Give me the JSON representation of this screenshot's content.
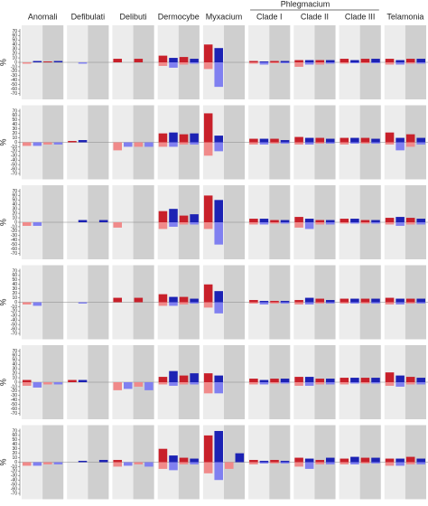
{
  "chart_data": {
    "type": "bar",
    "spanning_label": "Phlegmacium",
    "groups": [
      "Anomali",
      "Defibulati",
      "Delibuti",
      "Dermocybe",
      "Myxacium",
      "Clade I",
      "Clade II",
      "Clade III",
      "Telamonia"
    ],
    "ylabel": "%",
    "ylim": [
      -75,
      75
    ],
    "yticks": [
      70,
      60,
      50,
      40,
      30,
      20,
      10,
      0,
      -10,
      -20,
      -30,
      -40,
      -50,
      -60,
      -70
    ],
    "gain_colors": [
      "#c8202a",
      "#1c22b4"
    ],
    "loss_colors": [
      "#f08a8a",
      "#8080f0"
    ],
    "background": [
      "#ececec",
      "#cfcfcf"
    ],
    "panels": [
      [
        {
          "gain": [
            0,
            3,
            2,
            3
          ],
          "loss": [
            -3,
            0,
            0,
            0
          ]
        },
        {
          "gain": [
            0,
            0,
            0,
            0
          ],
          "loss": [
            0,
            -3,
            0,
            0
          ]
        },
        {
          "gain": [
            8,
            0,
            8,
            0
          ],
          "loss": [
            0,
            0,
            0,
            0
          ]
        },
        {
          "gain": [
            15,
            10,
            12,
            8
          ],
          "loss": [
            -8,
            -12,
            -5,
            -3
          ]
        },
        {
          "gain": [
            40,
            32,
            0,
            0
          ],
          "loss": [
            -15,
            -55,
            0,
            0
          ]
        },
        {
          "gain": [
            3,
            2,
            3,
            3
          ],
          "loss": [
            -3,
            -5,
            -2,
            -2
          ]
        },
        {
          "gain": [
            5,
            5,
            5,
            5
          ],
          "loss": [
            -10,
            -5,
            -5,
            -3
          ]
        },
        {
          "gain": [
            8,
            5,
            8,
            8
          ],
          "loss": [
            -3,
            -2,
            -2,
            -2
          ]
        },
        {
          "gain": [
            8,
            5,
            8,
            8
          ],
          "loss": [
            -5,
            -5,
            -3,
            -3
          ]
        }
      ],
      [
        {
          "gain": [
            0,
            0,
            0,
            0
          ],
          "loss": [
            -8,
            -8,
            -5,
            -5
          ]
        },
        {
          "gain": [
            3,
            5,
            0,
            0
          ],
          "loss": [
            0,
            0,
            0,
            0
          ]
        },
        {
          "gain": [
            0,
            0,
            0,
            0
          ],
          "loss": [
            -18,
            -10,
            -10,
            -10
          ]
        },
        {
          "gain": [
            20,
            22,
            18,
            20
          ],
          "loss": [
            -10,
            -10,
            -5,
            -5
          ]
        },
        {
          "gain": [
            65,
            15,
            0,
            0
          ],
          "loss": [
            -30,
            -20,
            0,
            0
          ]
        },
        {
          "gain": [
            8,
            8,
            8,
            5
          ],
          "loss": [
            -5,
            -5,
            -3,
            -3
          ]
        },
        {
          "gain": [
            12,
            10,
            10,
            8
          ],
          "loss": [
            -5,
            -5,
            -3,
            -3
          ]
        },
        {
          "gain": [
            10,
            10,
            10,
            8
          ],
          "loss": [
            -5,
            -3,
            -3,
            -3
          ]
        },
        {
          "gain": [
            22,
            10,
            18,
            10
          ],
          "loss": [
            -5,
            -18,
            -10,
            -5
          ]
        }
      ],
      [
        {
          "gain": [
            0,
            0,
            0,
            0
          ],
          "loss": [
            -8,
            -8,
            0,
            0
          ]
        },
        {
          "gain": [
            0,
            5,
            0,
            5
          ],
          "loss": [
            0,
            0,
            0,
            0
          ]
        },
        {
          "gain": [
            0,
            0,
            0,
            0
          ],
          "loss": [
            -12,
            0,
            0,
            0
          ]
        },
        {
          "gain": [
            25,
            30,
            15,
            18
          ],
          "loss": [
            -15,
            -10,
            -5,
            -5
          ]
        },
        {
          "gain": [
            60,
            50,
            0,
            0
          ],
          "loss": [
            -15,
            -50,
            0,
            0
          ]
        },
        {
          "gain": [
            8,
            8,
            5,
            5
          ],
          "loss": [
            -5,
            -5,
            -3,
            -3
          ]
        },
        {
          "gain": [
            12,
            8,
            5,
            5
          ],
          "loss": [
            -12,
            -15,
            -5,
            -5
          ]
        },
        {
          "gain": [
            8,
            8,
            5,
            5
          ],
          "loss": [
            -3,
            -3,
            -3,
            -3
          ]
        },
        {
          "gain": [
            10,
            12,
            10,
            8
          ],
          "loss": [
            -5,
            -8,
            -5,
            -5
          ]
        }
      ],
      [
        {
          "gain": [
            0,
            0,
            0,
            0
          ],
          "loss": [
            -5,
            -8,
            0,
            0
          ]
        },
        {
          "gain": [
            0,
            0,
            0,
            0
          ],
          "loss": [
            0,
            -3,
            0,
            0
          ]
        },
        {
          "gain": [
            10,
            0,
            10,
            0
          ],
          "loss": [
            0,
            0,
            0,
            0
          ]
        },
        {
          "gain": [
            18,
            12,
            12,
            8
          ],
          "loss": [
            -8,
            -8,
            -5,
            -3
          ]
        },
        {
          "gain": [
            40,
            25,
            0,
            0
          ],
          "loss": [
            -12,
            -25,
            0,
            0
          ]
        },
        {
          "gain": [
            5,
            3,
            3,
            3
          ],
          "loss": [
            -3,
            -5,
            -3,
            -3
          ]
        },
        {
          "gain": [
            5,
            10,
            8,
            5
          ],
          "loss": [
            -5,
            -5,
            -3,
            -3
          ]
        },
        {
          "gain": [
            8,
            8,
            8,
            8
          ],
          "loss": [
            -3,
            -3,
            -3,
            -3
          ]
        },
        {
          "gain": [
            10,
            8,
            8,
            8
          ],
          "loss": [
            -5,
            -5,
            -3,
            -3
          ]
        }
      ],
      [
        {
          "gain": [
            5,
            0,
            0,
            0
          ],
          "loss": [
            -8,
            -12,
            -5,
            -5
          ]
        },
        {
          "gain": [
            5,
            5,
            0,
            0
          ],
          "loss": [
            0,
            0,
            0,
            0
          ]
        },
        {
          "gain": [
            0,
            0,
            0,
            0
          ],
          "loss": [
            -18,
            -15,
            -10,
            -18
          ]
        },
        {
          "gain": [
            12,
            25,
            15,
            20
          ],
          "loss": [
            -5,
            -8,
            -5,
            -5
          ]
        },
        {
          "gain": [
            20,
            15,
            0,
            0
          ],
          "loss": [
            -25,
            -25,
            0,
            0
          ]
        },
        {
          "gain": [
            8,
            5,
            8,
            8
          ],
          "loss": [
            -5,
            -5,
            -3,
            -3
          ]
        },
        {
          "gain": [
            12,
            12,
            8,
            8
          ],
          "loss": [
            -8,
            -8,
            -5,
            -5
          ]
        },
        {
          "gain": [
            10,
            10,
            10,
            10
          ],
          "loss": [
            -5,
            -3,
            -3,
            -3
          ]
        },
        {
          "gain": [
            22,
            15,
            12,
            10
          ],
          "loss": [
            -8,
            -10,
            -5,
            -5
          ]
        }
      ],
      [
        {
          "gain": [
            0,
            0,
            0,
            0
          ],
          "loss": [
            -8,
            -8,
            -5,
            -5
          ]
        },
        {
          "gain": [
            0,
            3,
            0,
            5
          ],
          "loss": [
            0,
            0,
            0,
            0
          ]
        },
        {
          "gain": [
            5,
            0,
            0,
            0
          ],
          "loss": [
            -10,
            -8,
            -5,
            -10
          ]
        },
        {
          "gain": [
            30,
            15,
            10,
            8
          ],
          "loss": [
            -15,
            -18,
            -5,
            -5
          ]
        },
        {
          "gain": [
            60,
            70,
            0,
            20
          ],
          "loss": [
            -25,
            -40,
            -15,
            0
          ]
        },
        {
          "gain": [
            5,
            3,
            5,
            3
          ],
          "loss": [
            -5,
            -3,
            -3,
            -3
          ]
        },
        {
          "gain": [
            10,
            8,
            5,
            10
          ],
          "loss": [
            -10,
            -15,
            -5,
            -5
          ]
        },
        {
          "gain": [
            8,
            12,
            10,
            10
          ],
          "loss": [
            -5,
            -5,
            -3,
            -3
          ]
        },
        {
          "gain": [
            8,
            8,
            12,
            8
          ],
          "loss": [
            -8,
            -8,
            -5,
            -5
          ]
        }
      ]
    ]
  }
}
